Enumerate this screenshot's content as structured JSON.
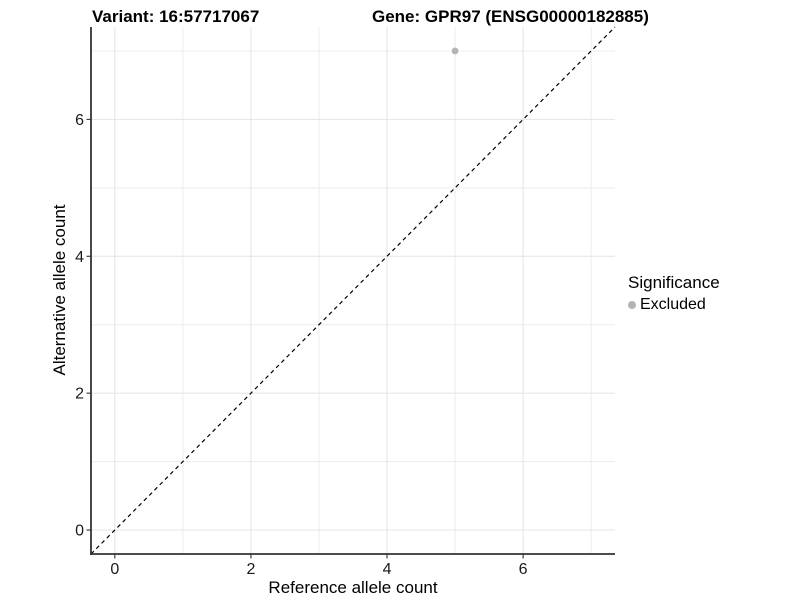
{
  "header": {
    "variant_title": "Variant: 16:57717067",
    "gene_title": "Gene: GPR97 (ENSG00000182885)"
  },
  "legend": {
    "title": "Significance",
    "items": [
      {
        "label": "Excluded",
        "color": "#b4b4b4"
      }
    ]
  },
  "colors": {
    "background": "#ffffff",
    "grid_major": "#e4e4e4",
    "grid_minor": "#ececec",
    "axis_line": "#333333",
    "tick_label": "#1a1a1a",
    "identity_line": "#000000",
    "point": "#b4b4b4"
  },
  "chart_data": {
    "type": "scatter",
    "title": "Variant: 16:57717067    Gene: GPR97 (ENSG00000182885)",
    "xlabel": "Reference allele count",
    "ylabel": "Alternative allele count",
    "xlim": [
      -0.35,
      7.35
    ],
    "ylim": [
      -0.35,
      7.35
    ],
    "x_ticks": [
      0,
      2,
      4,
      6
    ],
    "y_ticks": [
      0,
      2,
      4,
      6
    ],
    "x_tick_labels": [
      "0",
      "2",
      "4",
      "6"
    ],
    "y_tick_labels": [
      "0",
      "2",
      "4",
      "6"
    ],
    "x_minor_ticks": [
      1,
      3,
      5,
      7
    ],
    "y_minor_ticks": [
      1,
      3,
      5,
      7
    ],
    "grid": true,
    "legend_position": "right",
    "series": [
      {
        "name": "Excluded",
        "color": "#b4b4b4",
        "points": [
          {
            "x": 5,
            "y": 7
          }
        ]
      }
    ],
    "reference_line": {
      "equation": "y = x",
      "style": "dashed",
      "color": "#000000"
    }
  }
}
